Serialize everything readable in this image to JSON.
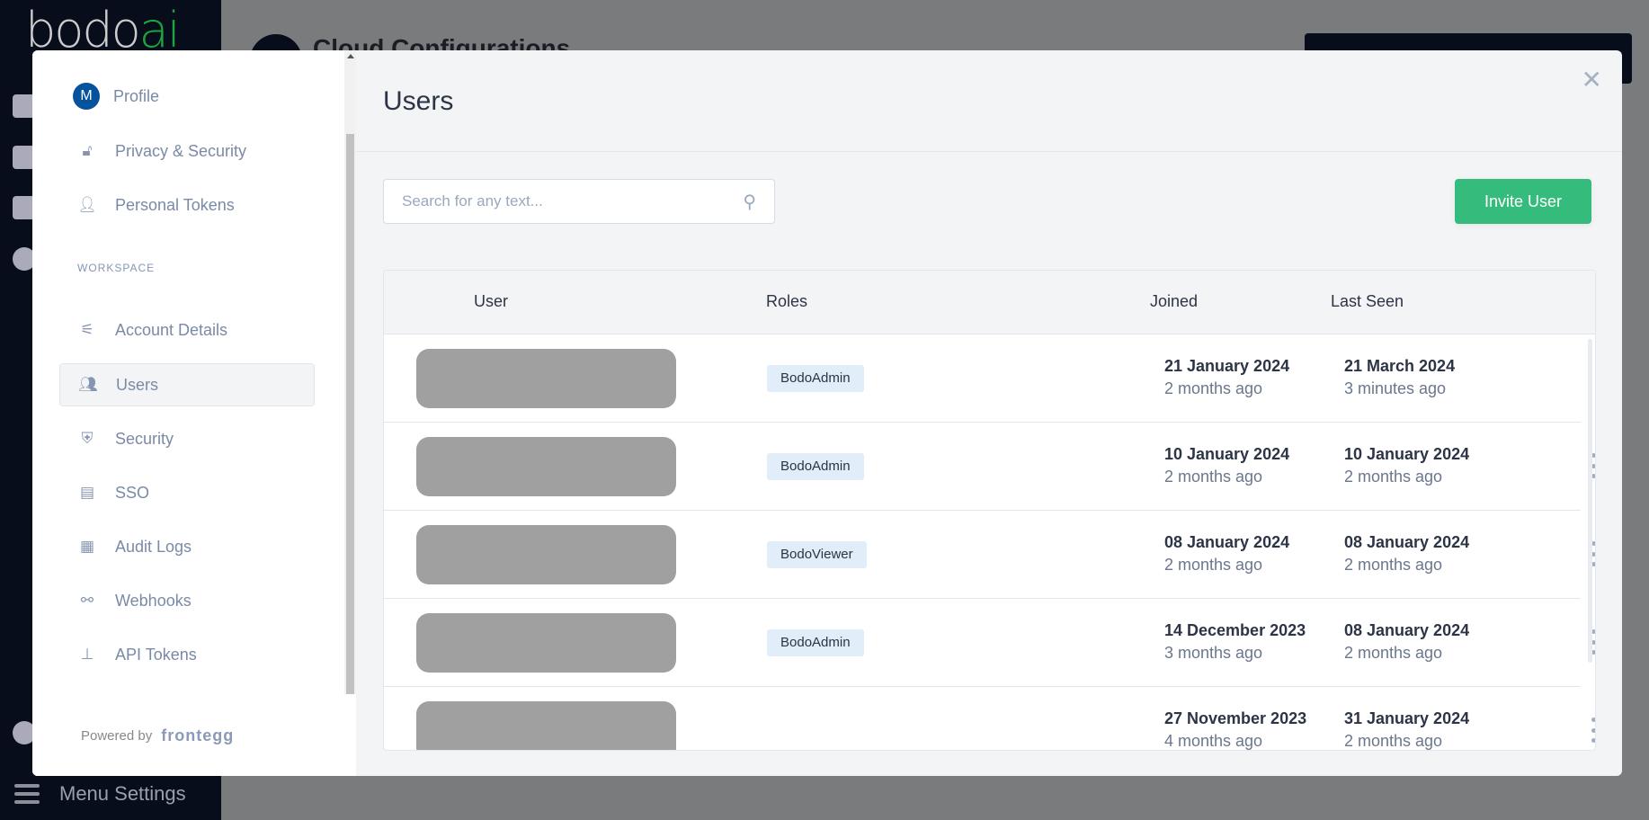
{
  "background": {
    "logo": {
      "text_main": "bodo",
      "text_accent": "ai"
    },
    "page_title": "Cloud Configurations",
    "menu_settings": "Menu Settings"
  },
  "nav": {
    "profile_initial": "M",
    "items": [
      {
        "label": "Profile",
        "icon": "avatar"
      },
      {
        "label": "Privacy & Security",
        "icon": "unlock-icon"
      },
      {
        "label": "Personal Tokens",
        "icon": "user-key-icon"
      }
    ],
    "workspace_label": "WORKSPACE",
    "workspace_items": [
      {
        "label": "Account Details",
        "icon": "sliders-icon"
      },
      {
        "label": "Users",
        "icon": "users-icon",
        "active": true
      },
      {
        "label": "Security",
        "icon": "shield-icon"
      },
      {
        "label": "SSO",
        "icon": "id-card-icon"
      },
      {
        "label": "Audit Logs",
        "icon": "document-icon"
      },
      {
        "label": "Webhooks",
        "icon": "webhook-icon"
      },
      {
        "label": "API Tokens",
        "icon": "hierarchy-icon"
      }
    ],
    "footer": {
      "powered_by": "Powered by",
      "brand": "frontegg"
    }
  },
  "main": {
    "title": "Users",
    "search_placeholder": "Search for any text...",
    "invite_label": "Invite User",
    "accent_color": "#35bb7b",
    "columns": [
      "User",
      "Roles",
      "Joined",
      "Last Seen"
    ],
    "rows": [
      {
        "role": "BodoAdmin",
        "joined": "21 January 2024",
        "joined_ago": "2 months ago",
        "last_seen": "21 March 2024",
        "last_seen_ago": "3 minutes ago",
        "menu": false
      },
      {
        "role": "BodoAdmin",
        "joined": "10 January 2024",
        "joined_ago": "2 months ago",
        "last_seen": "10 January 2024",
        "last_seen_ago": "2 months ago",
        "menu": true
      },
      {
        "role": "BodoViewer",
        "joined": "08 January 2024",
        "joined_ago": "2 months ago",
        "last_seen": "08 January 2024",
        "last_seen_ago": "2 months ago",
        "menu": true
      },
      {
        "role": "BodoAdmin",
        "joined": "14 December 2023",
        "joined_ago": "3 months ago",
        "last_seen": "08 January 2024",
        "last_seen_ago": "2 months ago",
        "menu": true
      },
      {
        "role": null,
        "joined": "27 November 2023",
        "joined_ago": "4 months ago",
        "last_seen": "31 January 2024",
        "last_seen_ago": "2 months ago",
        "menu": true
      }
    ]
  }
}
